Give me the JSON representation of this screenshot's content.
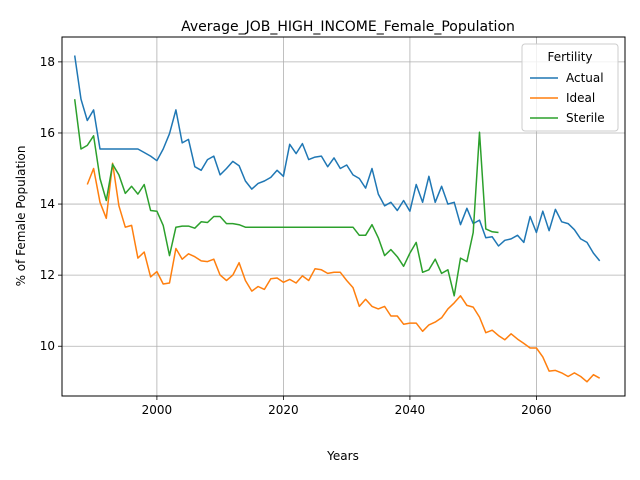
{
  "chart_data": {
    "type": "line",
    "title": "Average_JOB_HIGH_INCOME_Female_Population",
    "xlabel": "Years",
    "ylabel": "% of Female Population",
    "xlim": [
      1985,
      2074
    ],
    "ylim": [
      8.6,
      18.7
    ],
    "xticks": [
      2000,
      2020,
      2040,
      2060
    ],
    "yticks": [
      10,
      12,
      14,
      16,
      18
    ],
    "grid": true,
    "legend": {
      "title": "Fertility",
      "position": "top-right"
    },
    "series": [
      {
        "name": "Actual",
        "color": "#1f77b4",
        "points": [
          [
            1987,
            18.18
          ],
          [
            1988,
            16.95
          ],
          [
            1989,
            16.35
          ],
          [
            1990,
            16.65
          ],
          [
            1991,
            15.55
          ],
          [
            1992,
            15.55
          ],
          [
            1993,
            15.55
          ],
          [
            1994,
            15.55
          ],
          [
            1995,
            15.55
          ],
          [
            1996,
            15.55
          ],
          [
            1997,
            15.55
          ],
          [
            1998,
            15.45
          ],
          [
            1999,
            15.35
          ],
          [
            2000,
            15.22
          ],
          [
            2001,
            15.55
          ],
          [
            2002,
            15.98
          ],
          [
            2003,
            16.65
          ],
          [
            2004,
            15.72
          ],
          [
            2005,
            15.82
          ],
          [
            2006,
            15.05
          ],
          [
            2007,
            14.95
          ],
          [
            2008,
            15.25
          ],
          [
            2009,
            15.35
          ],
          [
            2010,
            14.82
          ],
          [
            2011,
            15.0
          ],
          [
            2012,
            15.2
          ],
          [
            2013,
            15.08
          ],
          [
            2014,
            14.65
          ],
          [
            2015,
            14.42
          ],
          [
            2016,
            14.58
          ],
          [
            2017,
            14.65
          ],
          [
            2018,
            14.75
          ],
          [
            2019,
            14.95
          ],
          [
            2020,
            14.78
          ],
          [
            2021,
            15.68
          ],
          [
            2022,
            15.42
          ],
          [
            2023,
            15.7
          ],
          [
            2024,
            15.25
          ],
          [
            2025,
            15.32
          ],
          [
            2026,
            15.35
          ],
          [
            2027,
            15.05
          ],
          [
            2028,
            15.3
          ],
          [
            2029,
            15.0
          ],
          [
            2030,
            15.1
          ],
          [
            2031,
            14.82
          ],
          [
            2032,
            14.72
          ],
          [
            2033,
            14.45
          ],
          [
            2034,
            15.0
          ],
          [
            2035,
            14.28
          ],
          [
            2036,
            13.95
          ],
          [
            2037,
            14.05
          ],
          [
            2038,
            13.82
          ],
          [
            2039,
            14.1
          ],
          [
            2040,
            13.8
          ],
          [
            2041,
            14.55
          ],
          [
            2042,
            14.05
          ],
          [
            2043,
            14.78
          ],
          [
            2044,
            14.05
          ],
          [
            2045,
            14.5
          ],
          [
            2046,
            14.0
          ],
          [
            2047,
            14.05
          ],
          [
            2048,
            13.42
          ],
          [
            2049,
            13.88
          ],
          [
            2050,
            13.45
          ],
          [
            2051,
            13.55
          ],
          [
            2052,
            13.05
          ],
          [
            2053,
            13.08
          ],
          [
            2054,
            12.82
          ],
          [
            2055,
            12.98
          ],
          [
            2056,
            13.02
          ],
          [
            2057,
            13.12
          ],
          [
            2058,
            12.92
          ],
          [
            2059,
            13.65
          ],
          [
            2060,
            13.2
          ],
          [
            2061,
            13.8
          ],
          [
            2062,
            13.25
          ],
          [
            2063,
            13.85
          ],
          [
            2064,
            13.5
          ],
          [
            2065,
            13.45
          ],
          [
            2066,
            13.28
          ],
          [
            2067,
            13.02
          ],
          [
            2068,
            12.92
          ],
          [
            2069,
            12.62
          ],
          [
            2070,
            12.4
          ]
        ]
      },
      {
        "name": "Ideal",
        "color": "#ff7f0e",
        "points": [
          [
            1989,
            14.55
          ],
          [
            1990,
            15.0
          ],
          [
            1991,
            14.05
          ],
          [
            1992,
            13.6
          ],
          [
            1993,
            15.15
          ],
          [
            1994,
            13.95
          ],
          [
            1995,
            13.35
          ],
          [
            1996,
            13.4
          ],
          [
            1997,
            12.48
          ],
          [
            1998,
            12.65
          ],
          [
            1999,
            11.95
          ],
          [
            2000,
            12.1
          ],
          [
            2001,
            11.75
          ],
          [
            2002,
            11.78
          ],
          [
            2003,
            12.75
          ],
          [
            2004,
            12.45
          ],
          [
            2005,
            12.6
          ],
          [
            2006,
            12.52
          ],
          [
            2007,
            12.4
          ],
          [
            2008,
            12.38
          ],
          [
            2009,
            12.45
          ],
          [
            2010,
            12.0
          ],
          [
            2011,
            11.85
          ],
          [
            2012,
            12.0
          ],
          [
            2013,
            12.35
          ],
          [
            2014,
            11.85
          ],
          [
            2015,
            11.55
          ],
          [
            2016,
            11.68
          ],
          [
            2017,
            11.6
          ],
          [
            2018,
            11.9
          ],
          [
            2019,
            11.92
          ],
          [
            2020,
            11.8
          ],
          [
            2021,
            11.88
          ],
          [
            2022,
            11.78
          ],
          [
            2023,
            11.98
          ],
          [
            2024,
            11.85
          ],
          [
            2025,
            12.18
          ],
          [
            2026,
            12.15
          ],
          [
            2027,
            12.05
          ],
          [
            2028,
            12.08
          ],
          [
            2029,
            12.08
          ],
          [
            2030,
            11.85
          ],
          [
            2031,
            11.65
          ],
          [
            2032,
            11.12
          ],
          [
            2033,
            11.32
          ],
          [
            2034,
            11.12
          ],
          [
            2035,
            11.05
          ],
          [
            2036,
            11.12
          ],
          [
            2037,
            10.85
          ],
          [
            2038,
            10.85
          ],
          [
            2039,
            10.62
          ],
          [
            2040,
            10.65
          ],
          [
            2041,
            10.65
          ],
          [
            2042,
            10.42
          ],
          [
            2043,
            10.6
          ],
          [
            2044,
            10.68
          ],
          [
            2045,
            10.8
          ],
          [
            2046,
            11.05
          ],
          [
            2047,
            11.22
          ],
          [
            2048,
            11.42
          ],
          [
            2049,
            11.15
          ],
          [
            2050,
            11.1
          ],
          [
            2051,
            10.82
          ],
          [
            2052,
            10.38
          ],
          [
            2053,
            10.45
          ],
          [
            2054,
            10.3
          ],
          [
            2055,
            10.18
          ],
          [
            2056,
            10.35
          ],
          [
            2057,
            10.2
          ],
          [
            2058,
            10.08
          ],
          [
            2059,
            9.95
          ],
          [
            2060,
            9.95
          ],
          [
            2061,
            9.7
          ],
          [
            2062,
            9.3
          ],
          [
            2063,
            9.32
          ],
          [
            2064,
            9.25
          ],
          [
            2065,
            9.15
          ],
          [
            2066,
            9.25
          ],
          [
            2067,
            9.15
          ],
          [
            2068,
            9.0
          ],
          [
            2069,
            9.2
          ],
          [
            2070,
            9.1
          ]
        ]
      },
      {
        "name": "Sterile",
        "color": "#2ca02c",
        "points": [
          [
            1987,
            16.95
          ],
          [
            1988,
            15.55
          ],
          [
            1989,
            15.65
          ],
          [
            1990,
            15.92
          ],
          [
            1991,
            14.72
          ],
          [
            1992,
            14.1
          ],
          [
            1993,
            15.12
          ],
          [
            1994,
            14.82
          ],
          [
            1995,
            14.3
          ],
          [
            1996,
            14.5
          ],
          [
            1997,
            14.28
          ],
          [
            1998,
            14.55
          ],
          [
            1999,
            13.82
          ],
          [
            2000,
            13.8
          ],
          [
            2001,
            13.4
          ],
          [
            2002,
            12.55
          ],
          [
            2003,
            13.35
          ],
          [
            2004,
            13.38
          ],
          [
            2005,
            13.38
          ],
          [
            2006,
            13.32
          ],
          [
            2007,
            13.5
          ],
          [
            2008,
            13.48
          ],
          [
            2009,
            13.65
          ],
          [
            2010,
            13.65
          ],
          [
            2011,
            13.45
          ],
          [
            2012,
            13.45
          ],
          [
            2013,
            13.42
          ],
          [
            2014,
            13.35
          ],
          [
            2015,
            13.35
          ],
          [
            2016,
            13.35
          ],
          [
            2017,
            13.35
          ],
          [
            2018,
            13.35
          ],
          [
            2019,
            13.35
          ],
          [
            2020,
            13.35
          ],
          [
            2021,
            13.35
          ],
          [
            2022,
            13.35
          ],
          [
            2023,
            13.35
          ],
          [
            2024,
            13.35
          ],
          [
            2025,
            13.35
          ],
          [
            2026,
            13.35
          ],
          [
            2027,
            13.35
          ],
          [
            2028,
            13.35
          ],
          [
            2029,
            13.35
          ],
          [
            2030,
            13.35
          ],
          [
            2031,
            13.35
          ],
          [
            2032,
            13.12
          ],
          [
            2033,
            13.12
          ],
          [
            2034,
            13.42
          ],
          [
            2035,
            13.05
          ],
          [
            2036,
            12.55
          ],
          [
            2037,
            12.72
          ],
          [
            2038,
            12.52
          ],
          [
            2039,
            12.25
          ],
          [
            2040,
            12.62
          ],
          [
            2041,
            12.92
          ],
          [
            2042,
            12.08
          ],
          [
            2043,
            12.15
          ],
          [
            2044,
            12.45
          ],
          [
            2045,
            12.05
          ],
          [
            2046,
            12.15
          ],
          [
            2047,
            11.42
          ],
          [
            2048,
            12.48
          ],
          [
            2049,
            12.38
          ],
          [
            2050,
            13.2
          ],
          [
            2051,
            16.02
          ],
          [
            2052,
            13.3
          ],
          [
            2053,
            13.22
          ],
          [
            2054,
            13.2
          ]
        ]
      }
    ]
  }
}
